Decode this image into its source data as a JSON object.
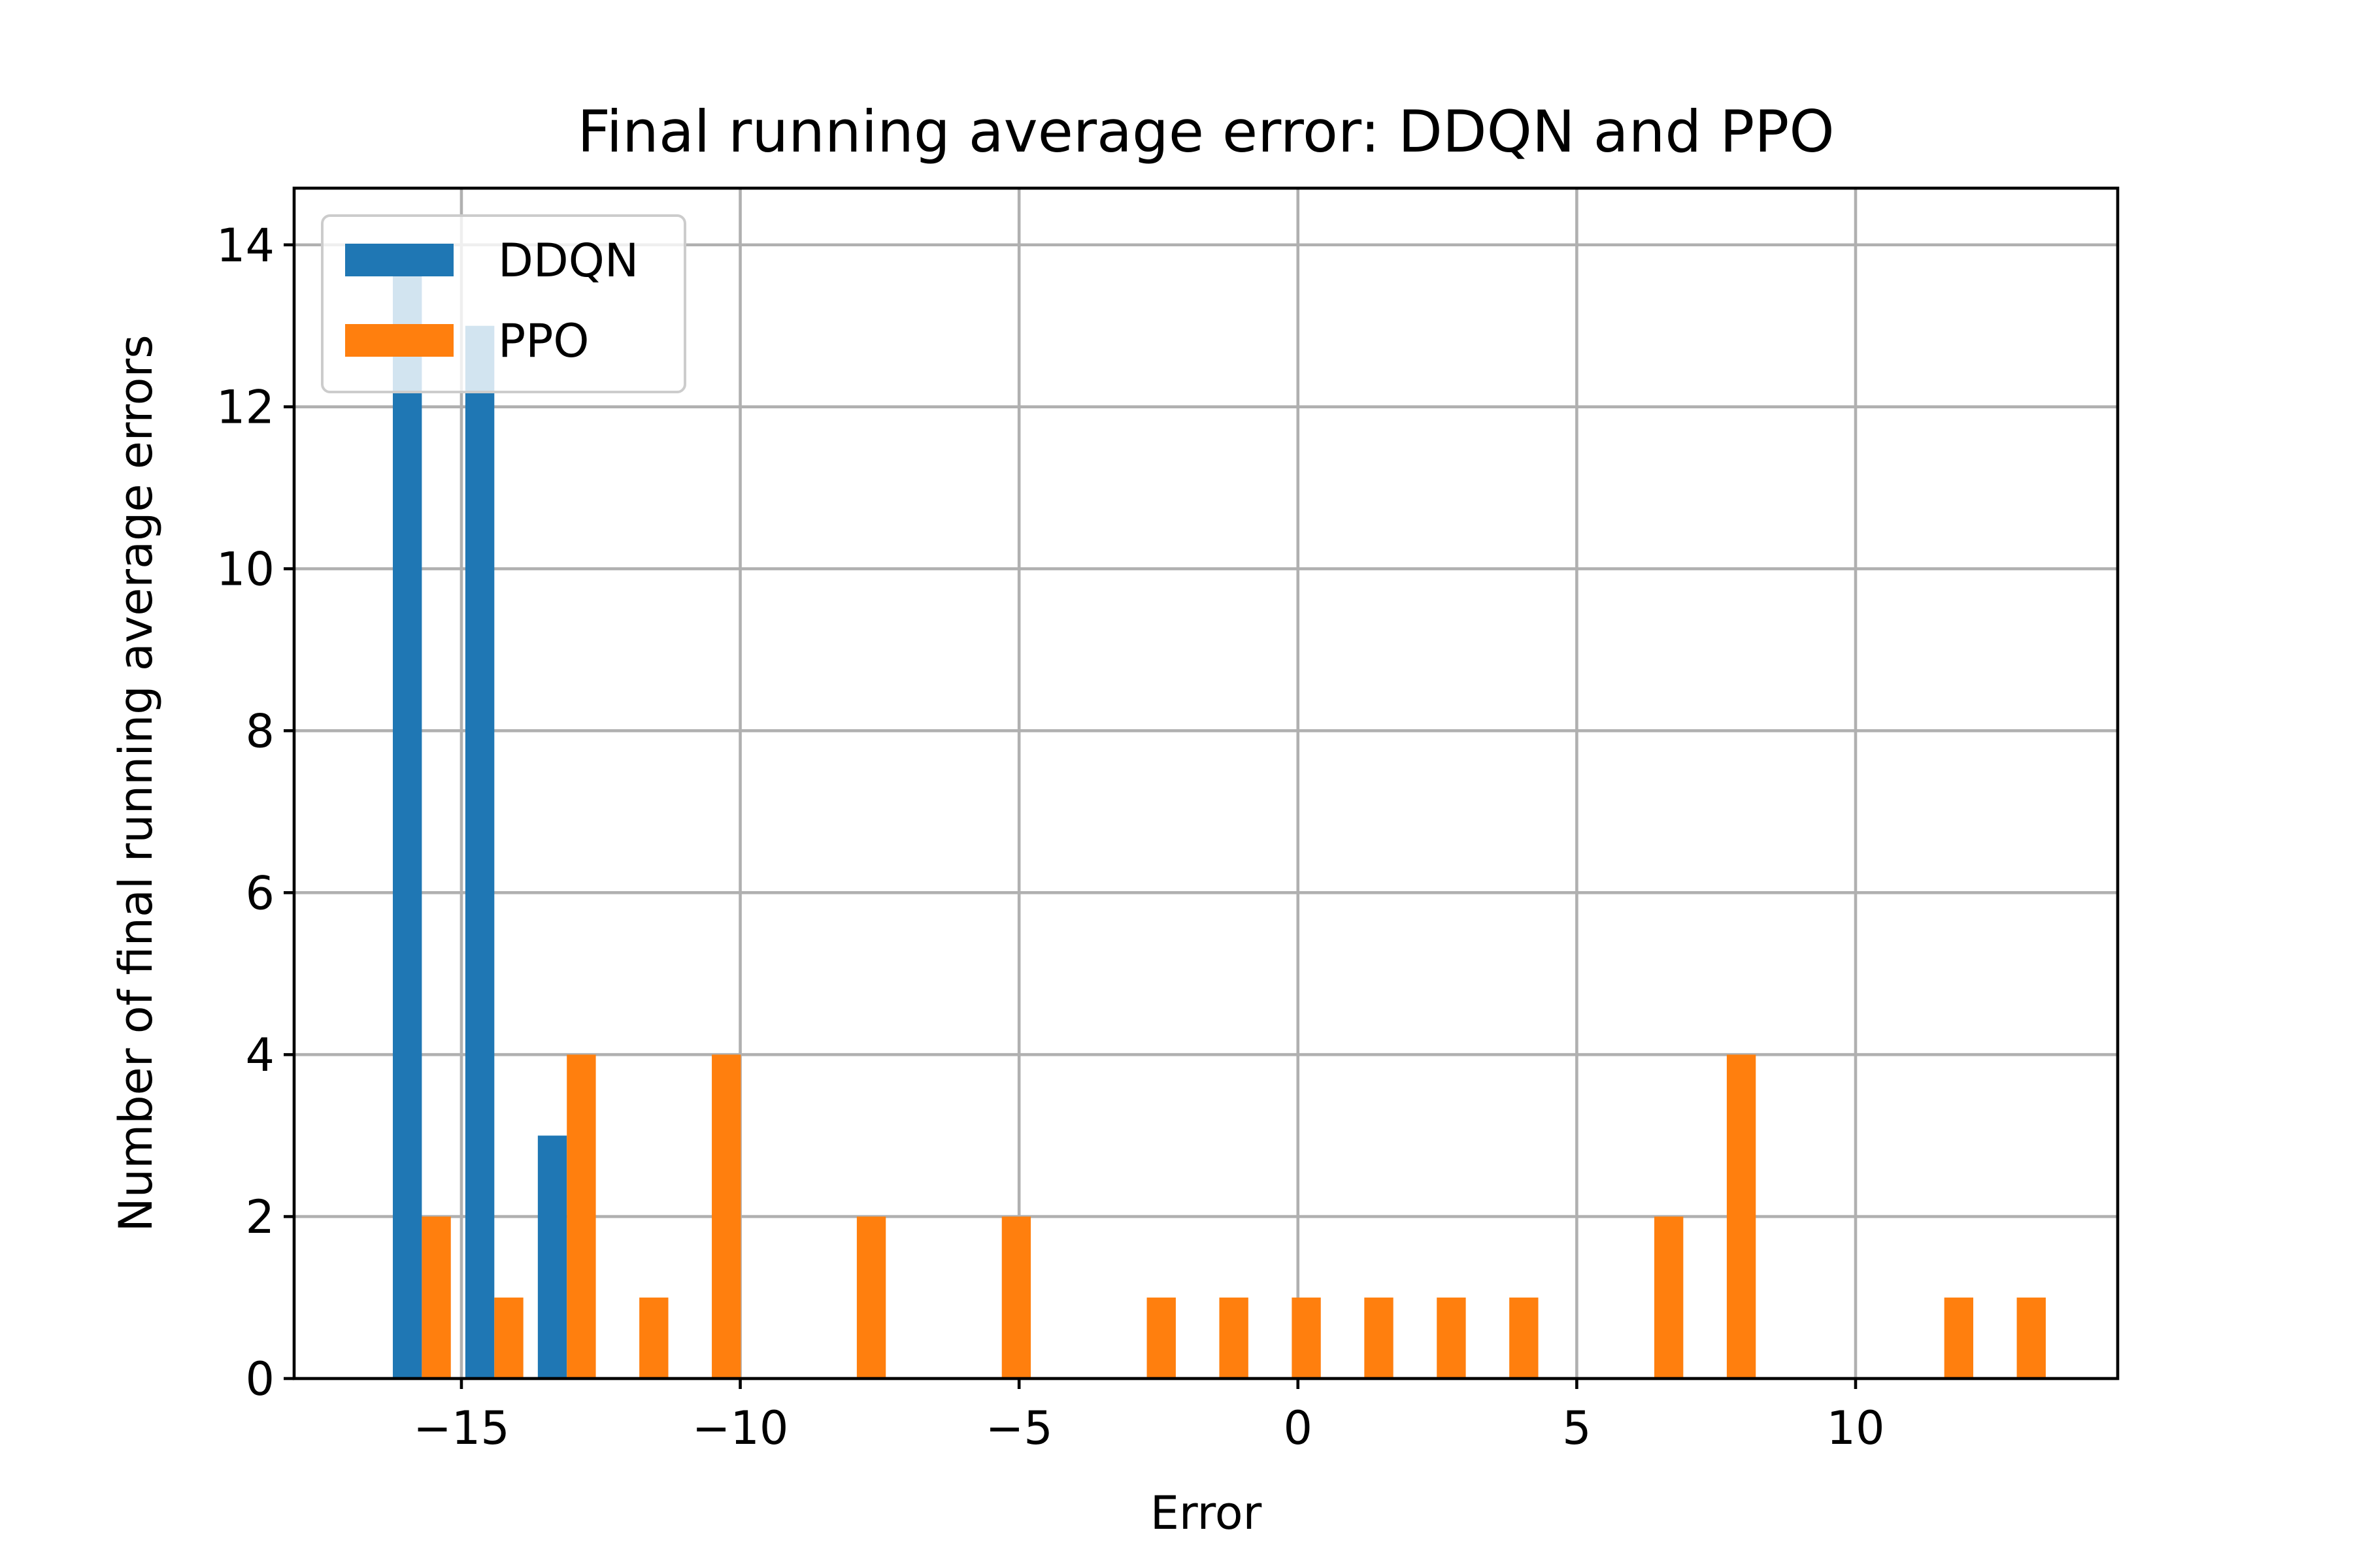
{
  "chart_data": {
    "type": "bar",
    "title": "Final running average error: DDQN and PPO",
    "xlabel": "Error",
    "ylabel": "Number of final running average errors",
    "xlim": [
      -18,
      14.7
    ],
    "ylim": [
      0,
      14.7
    ],
    "x_ticks": [
      -15,
      -10,
      -5,
      0,
      5,
      10
    ],
    "x_tick_labels": [
      "−15",
      "−10",
      "−5",
      "0",
      "5",
      "10"
    ],
    "y_ticks": [
      0,
      2,
      4,
      6,
      8,
      10,
      12,
      14
    ],
    "y_tick_labels": [
      "0",
      "2",
      "4",
      "6",
      "8",
      "10",
      "12",
      "14"
    ],
    "grid": true,
    "legend_position": "upper-left",
    "bar_width": 0.52,
    "series": [
      {
        "name": "DDQN",
        "color": "#1f77b4",
        "bars": [
          {
            "x": -15.97,
            "value": 14
          },
          {
            "x": -14.67,
            "value": 13
          },
          {
            "x": -13.37,
            "value": 3
          }
        ]
      },
      {
        "name": "PPO",
        "color": "#ff7f0e",
        "bars": [
          {
            "x": -15.45,
            "value": 2
          },
          {
            "x": -14.15,
            "value": 1
          },
          {
            "x": -12.85,
            "value": 4
          },
          {
            "x": -11.55,
            "value": 1
          },
          {
            "x": -10.25,
            "value": 4
          },
          {
            "x": -7.65,
            "value": 2
          },
          {
            "x": -5.05,
            "value": 2
          },
          {
            "x": -2.45,
            "value": 1
          },
          {
            "x": -1.15,
            "value": 1
          },
          {
            "x": 0.15,
            "value": 1
          },
          {
            "x": 1.45,
            "value": 1
          },
          {
            "x": 2.75,
            "value": 1
          },
          {
            "x": 4.05,
            "value": 1
          },
          {
            "x": 6.65,
            "value": 2
          },
          {
            "x": 7.95,
            "value": 4
          },
          {
            "x": 11.85,
            "value": 1
          },
          {
            "x": 13.15,
            "value": 1
          }
        ]
      }
    ]
  }
}
